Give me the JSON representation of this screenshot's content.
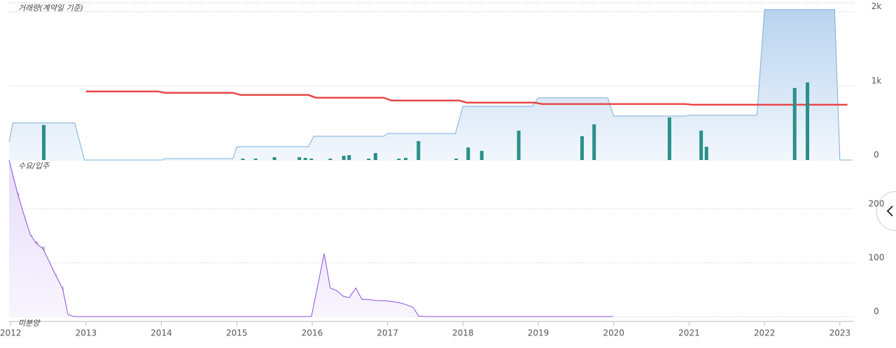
{
  "chart_data": [
    {
      "type": "combo",
      "title": "거래량(계약일 기준)",
      "xlim": [
        2011.98,
        2023.15
      ],
      "ylim": [
        0,
        2120
      ],
      "yticks": [
        0,
        {
          "value": 1000,
          "label": "1k"
        },
        {
          "value": 2000,
          "label": "2k"
        }
      ],
      "grid": true,
      "series": [
        {
          "type": "area",
          "color": "#7aaedc",
          "x": [
            2011.98,
            2012.03,
            2012.85,
            2012.98,
            2014.0,
            2014.05,
            2014.95,
            2015.0,
            2015.95,
            2016.02,
            2016.95,
            2017.0,
            2017.9,
            2018.0,
            2018.92,
            2019.0,
            2019.92,
            2020.0,
            2020.95,
            2021.0,
            2021.9,
            2022.0,
            2022.93,
            2023.0,
            2023.15
          ],
          "values": [
            245,
            500,
            500,
            0,
            0,
            19,
            19,
            180,
            180,
            320,
            320,
            358,
            358,
            726,
            726,
            840,
            840,
            594,
            594,
            604,
            604,
            2028,
            2028,
            0,
            0
          ]
        },
        {
          "type": "line",
          "color": "#e84545",
          "x": [
            2013.0,
            2013.95,
            2014.05,
            2014.95,
            2015.05,
            2015.95,
            2016.05,
            2016.95,
            2017.05,
            2017.95,
            2018.05,
            2018.95,
            2019.05,
            2020.95,
            2021.05,
            2023.1
          ],
          "values": [
            925,
            925,
            906,
            906,
            877,
            877,
            840,
            840,
            802,
            802,
            774,
            774,
            755,
            755,
            745,
            745
          ]
        },
        {
          "type": "bar",
          "color": "#2a8f8a",
          "x": [
            2012.44,
            2015.08,
            2015.25,
            2015.5,
            2015.83,
            2015.91,
            2015.99,
            2016.24,
            2016.42,
            2016.49,
            2016.75,
            2016.84,
            2017.15,
            2017.24,
            2017.41,
            2017.91,
            2018.07,
            2018.25,
            2018.74,
            2019.58,
            2019.74,
            2020.74,
            2021.16,
            2021.23,
            2022.4,
            2022.57
          ],
          "values": [
            472,
            19,
            19,
            38,
            38,
            28,
            19,
            19,
            57,
            66,
            19,
            94,
            19,
            28,
            255,
            19,
            170,
            123,
            396,
            321,
            481,
            575,
            396,
            179,
            972,
            1047
          ]
        }
      ]
    },
    {
      "type": "combo",
      "title": "수요/입주",
      "xlim": [
        2011.98,
        2023.15
      ],
      "ylim": [
        0,
        291
      ],
      "xticks": [
        2012,
        2013,
        2014,
        2015,
        2016,
        2017,
        2018,
        2019,
        2020,
        2021,
        2022,
        2023
      ],
      "yticks": [
        0,
        100,
        200
      ],
      "grid": true,
      "series": [
        {
          "type": "bar",
          "name": "미분양",
          "color": "#bdbdbd",
          "x": [
            2012.09,
            2012.18,
            2012.26,
            2012.34,
            2012.43,
            2012.51,
            2012.59,
            2012.68,
            2016.58
          ],
          "values": [
            230,
            183,
            152,
            140,
            130,
            99,
            79,
            55,
            16
          ]
        },
        {
          "type": "area",
          "color": "#8a4fe0",
          "x": [
            2011.98,
            2012.09,
            2012.18,
            2012.26,
            2012.34,
            2012.43,
            2012.51,
            2012.59,
            2012.69,
            2012.76,
            2012.84,
            2015.99,
            2016.16,
            2016.24,
            2016.33,
            2016.41,
            2016.49,
            2016.58,
            2016.66,
            2016.74,
            2016.83,
            2017.0,
            2017.15,
            2017.25,
            2017.34,
            2017.41,
            2017.5,
            2019.99
          ],
          "values": [
            291,
            230,
            188,
            153,
            136,
            126,
            103,
            79,
            52,
            4,
            0,
            0,
            117,
            53,
            48,
            38,
            35,
            53,
            32,
            32,
            30,
            29,
            26,
            22,
            17,
            1,
            0,
            0
          ]
        }
      ]
    }
  ]
}
